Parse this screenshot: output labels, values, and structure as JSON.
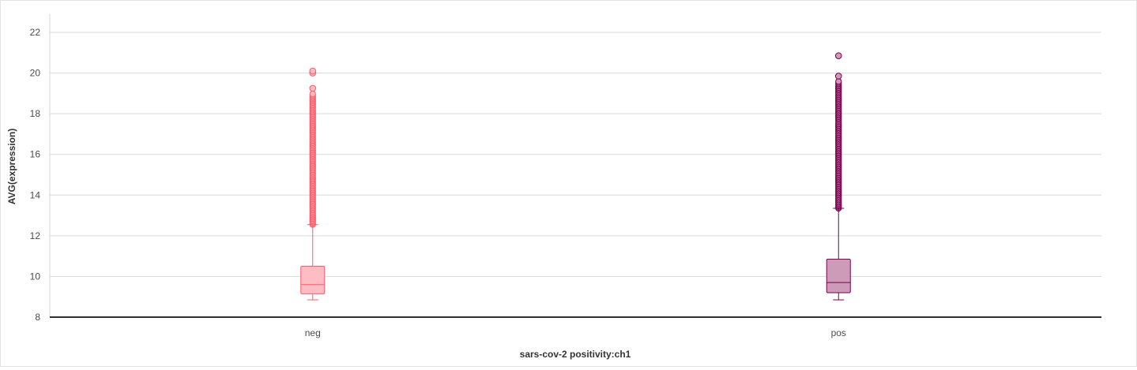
{
  "chart_data": {
    "type": "boxplot",
    "xlabel": "sars-cov-2 positivity:ch1",
    "ylabel": "AVG(expression)",
    "ylim": [
      8,
      23
    ],
    "yticks": [
      8,
      10,
      12,
      14,
      16,
      18,
      20,
      22
    ],
    "grid": true,
    "categories": [
      "neg",
      "pos"
    ],
    "boxes": [
      {
        "category": "neg",
        "color": "#fc5b68",
        "fill": "#ffbcc2",
        "whisker_low": 8.85,
        "q1": 9.15,
        "median": 9.6,
        "q3": 10.5,
        "whisker_high": 12.55,
        "outlier_range": [
          12.55,
          19.0
        ],
        "outliers_top": [
          19.25,
          20.0,
          20.1
        ]
      },
      {
        "category": "pos",
        "color": "#7b0050",
        "fill": "#cc9bb8",
        "whisker_low": 8.85,
        "q1": 9.2,
        "median": 9.7,
        "q3": 10.85,
        "whisker_high": 13.35,
        "outlier_range": [
          13.35,
          19.6
        ],
        "outliers_top": [
          19.85,
          20.85
        ]
      }
    ]
  }
}
